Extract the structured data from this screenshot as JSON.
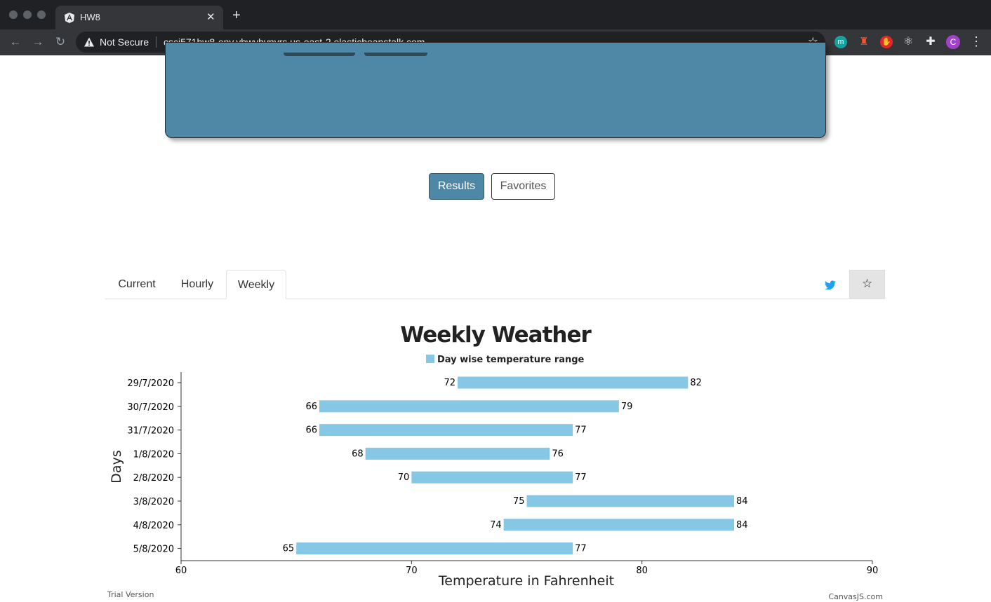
{
  "browser": {
    "tab_title": "HW8",
    "security_label": "Not Secure",
    "url": "csci571hw8-env.ybwvbvnvrs.us-east-2.elasticbeanstalk.com",
    "avatar_letter": "C",
    "ext_m_letter": "m"
  },
  "page": {
    "results_label": "Results",
    "favorites_label": "Favorites",
    "tabs": [
      "Current",
      "Hourly",
      "Weekly"
    ],
    "active_tab": "Weekly"
  },
  "chart_data": {
    "type": "bar",
    "orientation": "horizontal-range",
    "title": "Weekly Weather",
    "legend": "Day wise temperature range",
    "legend_position": "top",
    "color": "#87c7e6",
    "xlabel": "Temperature in Fahrenheit",
    "ylabel": "Days",
    "xlim": [
      60,
      90
    ],
    "xticks": [
      60,
      70,
      80,
      90
    ],
    "categories": [
      "29/7/2020",
      "30/7/2020",
      "31/7/2020",
      "1/8/2020",
      "2/8/2020",
      "3/8/2020",
      "4/8/2020",
      "5/8/2020"
    ],
    "low": [
      72,
      66,
      66,
      68,
      70,
      75,
      74,
      65
    ],
    "high": [
      82,
      79,
      77,
      76,
      77,
      84,
      84,
      77
    ],
    "footer_left": "Trial Version",
    "footer_right": "CanvasJS.com"
  }
}
